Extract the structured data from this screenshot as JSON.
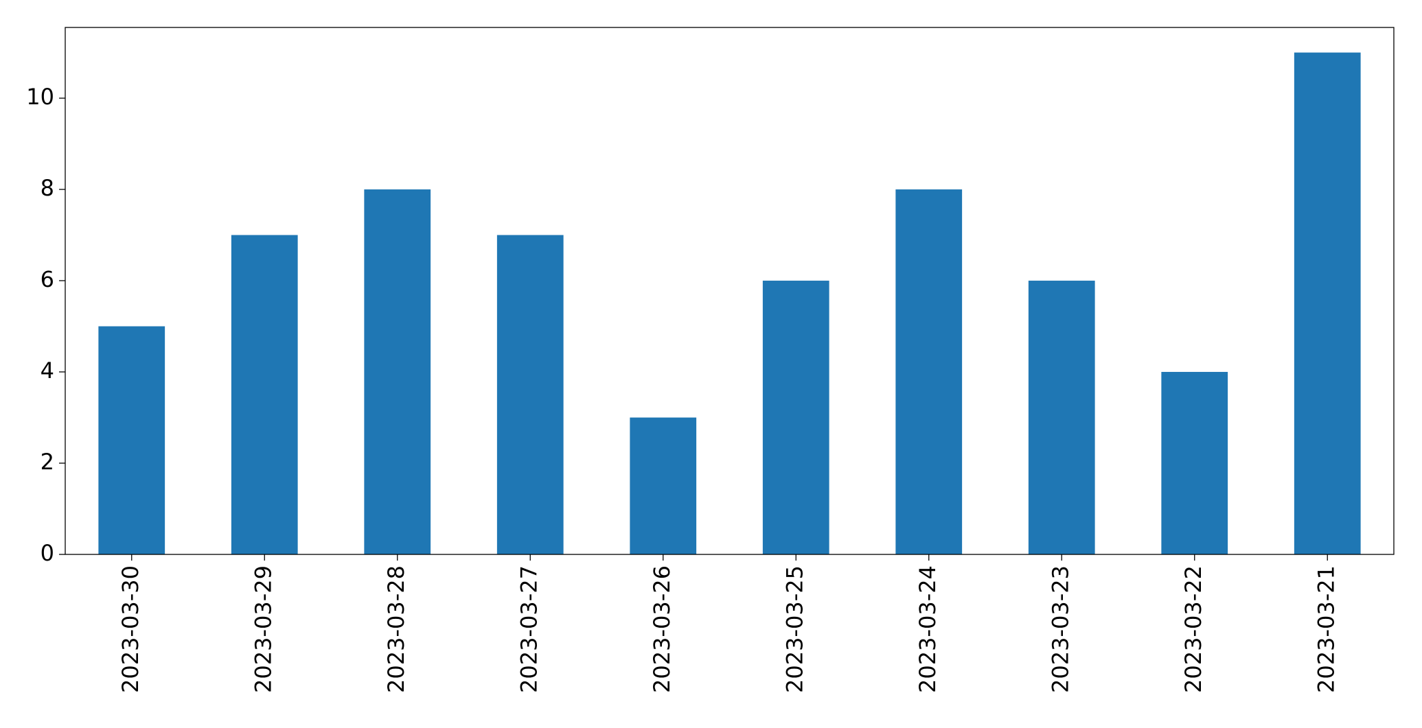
{
  "chart_data": {
    "type": "bar",
    "categories": [
      "2023-03-30",
      "2023-03-29",
      "2023-03-28",
      "2023-03-27",
      "2023-03-26",
      "2023-03-25",
      "2023-03-24",
      "2023-03-23",
      "2023-03-22",
      "2023-03-21"
    ],
    "values": [
      5,
      7,
      8,
      7,
      3,
      6,
      8,
      6,
      4,
      11
    ],
    "color": "#1f77b4",
    "ylim": [
      0,
      11.55
    ],
    "yticks": [
      0,
      2,
      4,
      6,
      8,
      10
    ],
    "grid": false
  }
}
